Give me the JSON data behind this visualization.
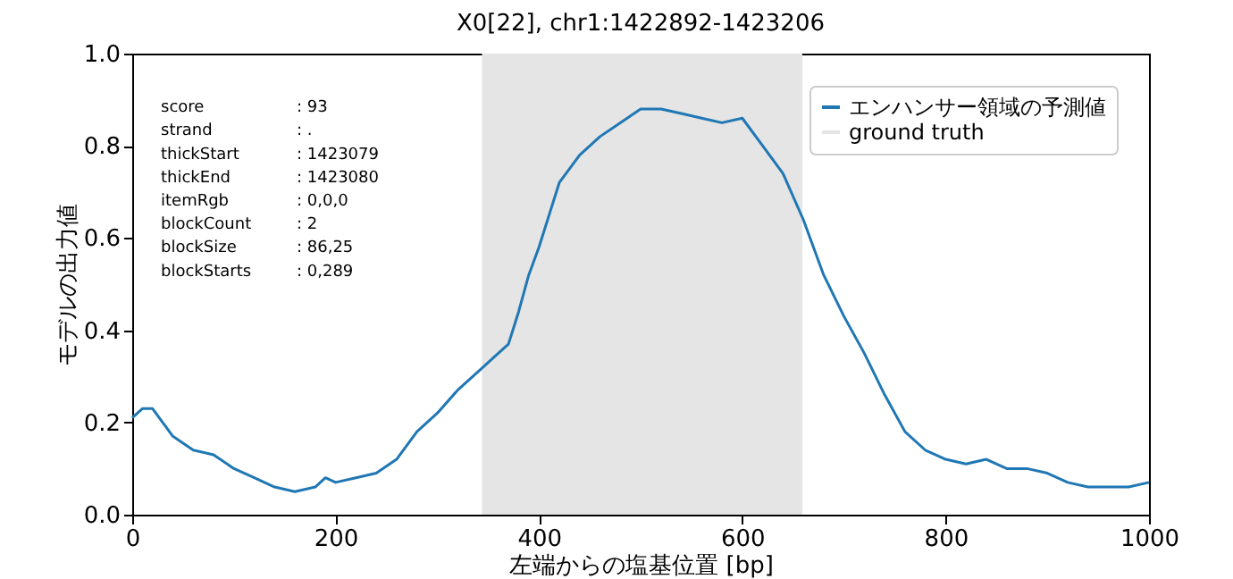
{
  "chart_data": {
    "type": "line",
    "title": "X0[22], chr1:1422892-1423206",
    "xlabel": "左端からの塩基位置 [bp]",
    "ylabel": "モデルの出力値",
    "x": [
      0,
      10,
      20,
      30,
      40,
      60,
      80,
      100,
      120,
      140,
      160,
      180,
      190,
      200,
      220,
      240,
      260,
      280,
      300,
      320,
      340,
      360,
      370,
      380,
      390,
      400,
      410,
      420,
      440,
      460,
      480,
      500,
      520,
      540,
      560,
      580,
      600,
      620,
      640,
      660,
      680,
      700,
      720,
      740,
      760,
      780,
      800,
      820,
      840,
      860,
      880,
      900,
      920,
      940,
      960,
      980,
      1000
    ],
    "series": [
      {
        "name": "エンハンサー領域の予測値",
        "color": "#1f77b4",
        "values": [
          0.21,
          0.23,
          0.23,
          0.2,
          0.17,
          0.14,
          0.13,
          0.1,
          0.08,
          0.06,
          0.05,
          0.06,
          0.08,
          0.07,
          0.08,
          0.09,
          0.12,
          0.18,
          0.22,
          0.27,
          0.31,
          0.35,
          0.37,
          0.44,
          0.52,
          0.58,
          0.65,
          0.72,
          0.78,
          0.82,
          0.85,
          0.88,
          0.88,
          0.87,
          0.86,
          0.85,
          0.86,
          0.8,
          0.74,
          0.64,
          0.52,
          0.43,
          0.35,
          0.26,
          0.18,
          0.14,
          0.12,
          0.11,
          0.12,
          0.1,
          0.1,
          0.09,
          0.07,
          0.06,
          0.06,
          0.06,
          0.07
        ]
      }
    ],
    "bands": [
      {
        "axis": "x",
        "from": 344,
        "to": 659,
        "label": "ground truth",
        "color": "#e5e5e5"
      }
    ],
    "annotations": [
      "score : 93",
      "strand : .",
      "thickStart : 1423079",
      "thickEnd : 1423080",
      "itemRgb : 0,0,0",
      "blockCount : 2",
      "blockSize : 86,25",
      "blockStarts : 0,289"
    ],
    "xlim": [
      0,
      1000
    ],
    "xticks": [
      0,
      200,
      400,
      600,
      800,
      1000
    ],
    "ylim": [
      0.0,
      1.0
    ],
    "yticks": [
      {
        "value": 0,
        "label": "0.0"
      },
      {
        "value": 0.2,
        "label": "0.2"
      },
      {
        "value": 0.4,
        "label": "0.4"
      },
      {
        "value": 0.6,
        "label": "0.6"
      },
      {
        "value": 0.8,
        "label": "0.8"
      },
      {
        "value": 1,
        "label": "1.0"
      }
    ],
    "grid": false,
    "legend": "top right",
    "marker": "none",
    "line_style": "solid"
  }
}
